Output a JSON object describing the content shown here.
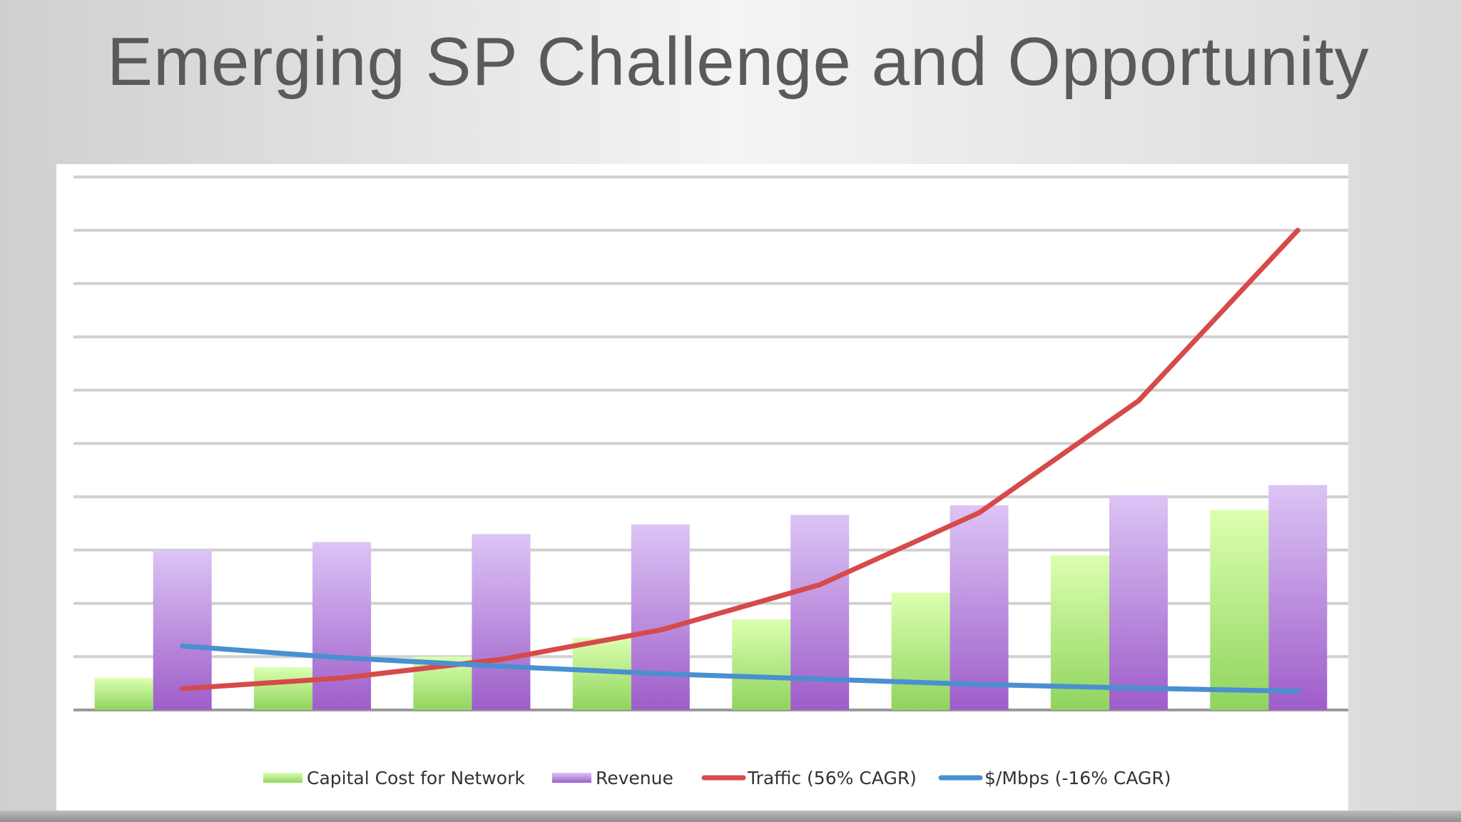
{
  "slide": {
    "title": "Emerging SP Challenge and Opportunity"
  },
  "chart_data": {
    "type": "bar",
    "title": "",
    "xlabel": "",
    "ylabel": "",
    "categories": [
      "",
      "",
      "",
      "",
      "",
      "",
      "",
      ""
    ],
    "ylim": [
      0,
      10
    ],
    "grid": true,
    "legend_position": "bottom",
    "series": [
      {
        "name": "Capital Cost for Network",
        "type": "bar",
        "color": "#a9e27a",
        "values": [
          0.6,
          0.8,
          1.0,
          1.35,
          1.7,
          2.2,
          2.9,
          3.75
        ]
      },
      {
        "name": "Revenue",
        "type": "bar",
        "color": "#b57fdd",
        "values": [
          3.0,
          3.15,
          3.3,
          3.48,
          3.66,
          3.84,
          4.03,
          4.22
        ]
      },
      {
        "name": "Traffic (56% CAGR)",
        "type": "line",
        "color": "#d64a4a",
        "values": [
          0.4,
          0.6,
          0.95,
          1.5,
          2.35,
          3.7,
          5.8,
          9.0
        ]
      },
      {
        "name": "$/Mbps (-16% CAGR)",
        "type": "line",
        "color": "#4a90d0",
        "values": [
          1.2,
          0.98,
          0.82,
          0.68,
          0.58,
          0.48,
          0.41,
          0.35
        ]
      }
    ]
  }
}
